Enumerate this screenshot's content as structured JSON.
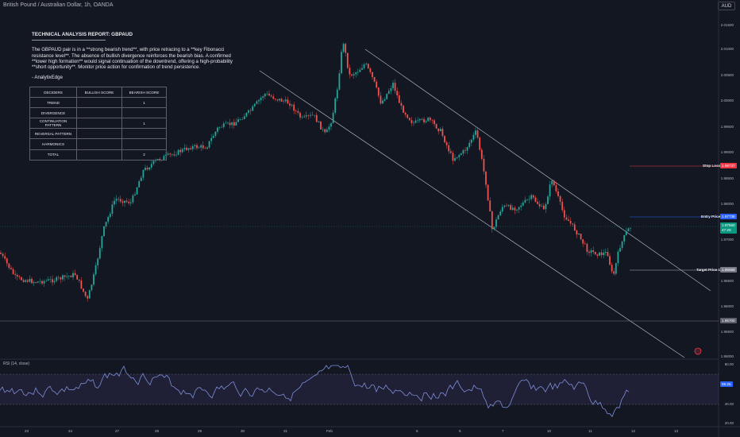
{
  "header": {
    "symbol_title": "British Pound / Australian Dollar, 1h, OANDA",
    "currency": "AUD"
  },
  "report": {
    "title": "TECHNICAL ANALYSIS REPORT: GBPAUD",
    "body_lines": [
      "The GBPAUD pair is in a **strong bearish trend**, with price retracing to a **key Fibonacci",
      "resistance level**. The absence of bullish divergence reinforces the bearish bias. A confirmed",
      "**lower high formation** would signal continuation of the downtrend, offering a high-probability",
      "**short opportunity**. Monitor price action for confirmation of trend persistence."
    ],
    "signature": "- AnalytixEdge"
  },
  "deciders_table": {
    "headers": [
      "DECIDERS",
      "BULLISH SCORE",
      "BEARISH SCORE"
    ],
    "rows": [
      [
        "TREND",
        "",
        "1"
      ],
      [
        "DIVERGENCE",
        "",
        ""
      ],
      [
        "CONTINUATION PATTERN",
        "",
        "1"
      ],
      [
        "REVERSAL PATTERN",
        "",
        ""
      ],
      [
        "HARMONICS",
        "",
        ""
      ],
      [
        "TOTAL",
        "",
        "2"
      ]
    ]
  },
  "price_axis": {
    "ticks": [
      "2.01500",
      "2.01000",
      "2.00500",
      "2.00000",
      "1.99500",
      "1.99000",
      "1.98500",
      "1.98000",
      "1.97500",
      "1.97000",
      "1.96500",
      "1.96000",
      "1.95500",
      "1.95000"
    ],
    "tick_values": [
      2.015,
      2.01,
      2.005,
      2.0,
      1.995,
      1.99,
      1.985,
      1.98,
      1.975,
      1.97,
      1.965,
      1.96,
      1.955,
      1.95
    ]
  },
  "levels": {
    "stop_loss": {
      "label": "Stop Loss",
      "price": "1.98737",
      "color": "#f23645"
    },
    "entry": {
      "label": "Entry Price",
      "price": "1.97738",
      "color": "#2962ff"
    },
    "current": {
      "price": "1.97560",
      "countdown": "47:29",
      "color": "#089981"
    },
    "target": {
      "label": "Target Price 1",
      "price": "1.96659",
      "color": "#b2b5be"
    },
    "low_line": {
      "price": "1.95700",
      "color": "#787b86"
    }
  },
  "rsi": {
    "label": "RSI (14, close)",
    "value": "59.25",
    "ticks": [
      "80.00",
      "40.00",
      "20.00"
    ]
  },
  "time_axis": {
    "labels": [
      "23",
      "24",
      "27",
      "28",
      "29",
      "30",
      "31",
      "Feb",
      "5",
      "6",
      "7",
      "10",
      "11",
      "12",
      "13"
    ]
  },
  "colors": {
    "bull": "#26a69a",
    "bear": "#ef5350",
    "channel": "#d1d4dc",
    "rsi_line": "#7e57c2"
  }
}
